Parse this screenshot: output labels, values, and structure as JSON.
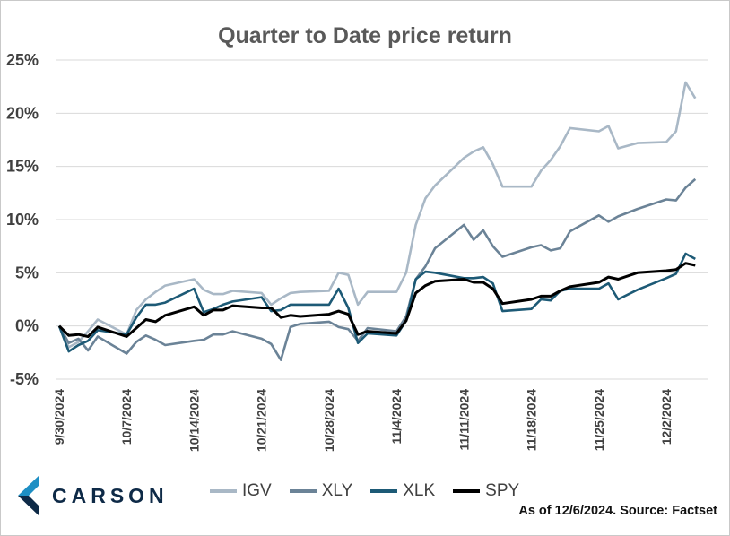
{
  "chart_data": {
    "type": "line",
    "title": "Quarter to Date price return",
    "ylim": [
      -5,
      25
    ],
    "yticks": [
      -5,
      0,
      5,
      10,
      15,
      20,
      25
    ],
    "ytick_labels": [
      "-5%",
      "0%",
      "5%",
      "10%",
      "15%",
      "20%",
      "25%"
    ],
    "xtick_labels": [
      "9/30/2024",
      "10/7/2024",
      "10/14/2024",
      "10/21/2024",
      "10/28/2024",
      "11/4/2024",
      "11/11/2024",
      "11/18/2024",
      "11/25/2024",
      "12/2/2024"
    ],
    "xlim": [
      "9/30/2024",
      "12/6/2024"
    ],
    "grid": "horizontal",
    "legend_position": "bottom",
    "series": [
      {
        "name": "IGV",
        "color": "#a9b8c6",
        "points": [
          [
            "9/30/2024",
            0
          ],
          [
            "10/1/2024",
            -2.0
          ],
          [
            "10/2/2024",
            -1.5
          ],
          [
            "10/3/2024",
            -0.5
          ],
          [
            "10/4/2024",
            0.6
          ],
          [
            "10/7/2024",
            -0.8
          ],
          [
            "10/8/2024",
            1.5
          ],
          [
            "10/9/2024",
            2.5
          ],
          [
            "10/10/2024",
            3.2
          ],
          [
            "10/11/2024",
            3.8
          ],
          [
            "10/14/2024",
            4.4
          ],
          [
            "10/15/2024",
            3.4
          ],
          [
            "10/16/2024",
            3.0
          ],
          [
            "10/17/2024",
            3.0
          ],
          [
            "10/18/2024",
            3.3
          ],
          [
            "10/21/2024",
            3.1
          ],
          [
            "10/22/2024",
            2.0
          ],
          [
            "10/23/2024",
            2.6
          ],
          [
            "10/24/2024",
            3.1
          ],
          [
            "10/25/2024",
            3.2
          ],
          [
            "10/28/2024",
            3.3
          ],
          [
            "10/29/2024",
            5.0
          ],
          [
            "10/30/2024",
            4.8
          ],
          [
            "10/31/2024",
            2.0
          ],
          [
            "11/1/2024",
            3.2
          ],
          [
            "11/4/2024",
            3.2
          ],
          [
            "11/5/2024",
            5.0
          ],
          [
            "11/6/2024",
            9.5
          ],
          [
            "11/7/2024",
            12.0
          ],
          [
            "11/8/2024",
            13.2
          ],
          [
            "11/11/2024",
            15.8
          ],
          [
            "11/12/2024",
            16.4
          ],
          [
            "11/13/2024",
            16.8
          ],
          [
            "11/14/2024",
            15.2
          ],
          [
            "11/15/2024",
            13.1
          ],
          [
            "11/18/2024",
            13.1
          ],
          [
            "11/19/2024",
            14.6
          ],
          [
            "11/20/2024",
            15.6
          ],
          [
            "11/21/2024",
            16.9
          ],
          [
            "11/22/2024",
            18.6
          ],
          [
            "11/25/2024",
            18.3
          ],
          [
            "11/26/2024",
            18.8
          ],
          [
            "11/27/2024",
            16.7
          ],
          [
            "11/29/2024",
            17.2
          ],
          [
            "12/2/2024",
            17.3
          ],
          [
            "12/3/2024",
            18.3
          ],
          [
            "12/4/2024",
            22.9
          ],
          [
            "12/5/2024",
            21.4
          ]
        ]
      },
      {
        "name": "XLY",
        "color": "#6b8397",
        "points": [
          [
            "9/30/2024",
            0
          ],
          [
            "10/1/2024",
            -1.6
          ],
          [
            "10/2/2024",
            -1.2
          ],
          [
            "10/3/2024",
            -2.3
          ],
          [
            "10/4/2024",
            -1.0
          ],
          [
            "10/7/2024",
            -2.6
          ],
          [
            "10/8/2024",
            -1.5
          ],
          [
            "10/9/2024",
            -0.9
          ],
          [
            "10/10/2024",
            -1.3
          ],
          [
            "10/11/2024",
            -1.8
          ],
          [
            "10/14/2024",
            -1.4
          ],
          [
            "10/15/2024",
            -1.3
          ],
          [
            "10/16/2024",
            -0.8
          ],
          [
            "10/17/2024",
            -0.8
          ],
          [
            "10/18/2024",
            -0.5
          ],
          [
            "10/21/2024",
            -1.2
          ],
          [
            "10/22/2024",
            -1.7
          ],
          [
            "10/23/2024",
            -3.2
          ],
          [
            "10/24/2024",
            -0.1
          ],
          [
            "10/25/2024",
            0.2
          ],
          [
            "10/28/2024",
            0.4
          ],
          [
            "10/29/2024",
            -0.1
          ],
          [
            "10/30/2024",
            -0.3
          ],
          [
            "10/31/2024",
            -1.4
          ],
          [
            "11/1/2024",
            -0.2
          ],
          [
            "11/4/2024",
            -0.5
          ],
          [
            "11/5/2024",
            0.9
          ],
          [
            "11/6/2024",
            4.4
          ],
          [
            "11/7/2024",
            5.6
          ],
          [
            "11/8/2024",
            7.3
          ],
          [
            "11/11/2024",
            9.5
          ],
          [
            "11/12/2024",
            8.1
          ],
          [
            "11/13/2024",
            9.0
          ],
          [
            "11/14/2024",
            7.5
          ],
          [
            "11/15/2024",
            6.5
          ],
          [
            "11/18/2024",
            7.4
          ],
          [
            "11/19/2024",
            7.6
          ],
          [
            "11/20/2024",
            7.1
          ],
          [
            "11/21/2024",
            7.3
          ],
          [
            "11/22/2024",
            8.9
          ],
          [
            "11/25/2024",
            10.4
          ],
          [
            "11/26/2024",
            9.8
          ],
          [
            "11/27/2024",
            10.3
          ],
          [
            "11/29/2024",
            11.0
          ],
          [
            "12/2/2024",
            11.9
          ],
          [
            "12/3/2024",
            11.8
          ],
          [
            "12/4/2024",
            13.0
          ],
          [
            "12/5/2024",
            13.8
          ]
        ]
      },
      {
        "name": "XLK",
        "color": "#1d5a76",
        "points": [
          [
            "9/30/2024",
            0
          ],
          [
            "10/1/2024",
            -2.4
          ],
          [
            "10/2/2024",
            -1.8
          ],
          [
            "10/3/2024",
            -1.4
          ],
          [
            "10/4/2024",
            -0.4
          ],
          [
            "10/7/2024",
            -0.8
          ],
          [
            "10/8/2024",
            0.8
          ],
          [
            "10/9/2024",
            2.0
          ],
          [
            "10/10/2024",
            2.0
          ],
          [
            "10/11/2024",
            2.2
          ],
          [
            "10/14/2024",
            3.5
          ],
          [
            "10/15/2024",
            1.3
          ],
          [
            "10/16/2024",
            1.6
          ],
          [
            "10/17/2024",
            2.0
          ],
          [
            "10/18/2024",
            2.3
          ],
          [
            "10/21/2024",
            2.7
          ],
          [
            "10/22/2024",
            1.4
          ],
          [
            "10/23/2024",
            1.5
          ],
          [
            "10/24/2024",
            2.0
          ],
          [
            "10/25/2024",
            2.0
          ],
          [
            "10/28/2024",
            2.0
          ],
          [
            "10/29/2024",
            3.5
          ],
          [
            "10/30/2024",
            1.7
          ],
          [
            "10/31/2024",
            -1.6
          ],
          [
            "11/1/2024",
            -0.7
          ],
          [
            "11/4/2024",
            -0.9
          ],
          [
            "11/5/2024",
            0.5
          ],
          [
            "11/6/2024",
            4.4
          ],
          [
            "11/7/2024",
            5.1
          ],
          [
            "11/8/2024",
            5.0
          ],
          [
            "11/11/2024",
            4.5
          ],
          [
            "11/12/2024",
            4.5
          ],
          [
            "11/13/2024",
            4.6
          ],
          [
            "11/14/2024",
            4.0
          ],
          [
            "11/15/2024",
            1.4
          ],
          [
            "11/18/2024",
            1.6
          ],
          [
            "11/19/2024",
            2.5
          ],
          [
            "11/20/2024",
            2.4
          ],
          [
            "11/21/2024",
            3.3
          ],
          [
            "11/22/2024",
            3.5
          ],
          [
            "11/25/2024",
            3.5
          ],
          [
            "11/26/2024",
            4.0
          ],
          [
            "11/27/2024",
            2.5
          ],
          [
            "11/29/2024",
            3.4
          ],
          [
            "12/2/2024",
            4.5
          ],
          [
            "12/3/2024",
            4.9
          ],
          [
            "12/4/2024",
            6.8
          ],
          [
            "12/5/2024",
            6.3
          ]
        ]
      },
      {
        "name": "SPY",
        "color": "#000000",
        "points": [
          [
            "9/30/2024",
            0
          ],
          [
            "10/1/2024",
            -0.9
          ],
          [
            "10/2/2024",
            -0.8
          ],
          [
            "10/3/2024",
            -1.0
          ],
          [
            "10/4/2024",
            -0.1
          ],
          [
            "10/7/2024",
            -1.0
          ],
          [
            "10/8/2024",
            -0.2
          ],
          [
            "10/9/2024",
            0.6
          ],
          [
            "10/10/2024",
            0.4
          ],
          [
            "10/11/2024",
            1.0
          ],
          [
            "10/14/2024",
            1.8
          ],
          [
            "10/15/2024",
            1.0
          ],
          [
            "10/16/2024",
            1.5
          ],
          [
            "10/17/2024",
            1.5
          ],
          [
            "10/18/2024",
            1.9
          ],
          [
            "10/21/2024",
            1.7
          ],
          [
            "10/22/2024",
            1.7
          ],
          [
            "10/23/2024",
            0.8
          ],
          [
            "10/24/2024",
            1.0
          ],
          [
            "10/25/2024",
            0.9
          ],
          [
            "10/28/2024",
            1.1
          ],
          [
            "10/29/2024",
            1.4
          ],
          [
            "10/30/2024",
            1.1
          ],
          [
            "10/31/2024",
            -0.8
          ],
          [
            "11/1/2024",
            -0.5
          ],
          [
            "11/4/2024",
            -0.7
          ],
          [
            "11/5/2024",
            0.5
          ],
          [
            "11/6/2024",
            3.1
          ],
          [
            "11/7/2024",
            3.8
          ],
          [
            "11/8/2024",
            4.2
          ],
          [
            "11/11/2024",
            4.4
          ],
          [
            "11/12/2024",
            4.1
          ],
          [
            "11/13/2024",
            4.1
          ],
          [
            "11/14/2024",
            3.5
          ],
          [
            "11/15/2024",
            2.1
          ],
          [
            "11/18/2024",
            2.5
          ],
          [
            "11/19/2024",
            2.8
          ],
          [
            "11/20/2024",
            2.8
          ],
          [
            "11/21/2024",
            3.3
          ],
          [
            "11/22/2024",
            3.7
          ],
          [
            "11/25/2024",
            4.1
          ],
          [
            "11/26/2024",
            4.6
          ],
          [
            "11/27/2024",
            4.4
          ],
          [
            "11/29/2024",
            5.0
          ],
          [
            "12/2/2024",
            5.2
          ],
          [
            "12/3/2024",
            5.3
          ],
          [
            "12/4/2024",
            5.9
          ],
          [
            "12/5/2024",
            5.7
          ]
        ]
      }
    ],
    "legend": [
      "IGV",
      "XLY",
      "XLK",
      "SPY"
    ]
  },
  "brand": {
    "name": "CARSON",
    "logo_icon": "carson-chevron-logo-icon",
    "logo_colors": [
      "#1e8fc4",
      "#0e2a47"
    ]
  },
  "source_note": "As of 12/6/2024. Source: Factset"
}
